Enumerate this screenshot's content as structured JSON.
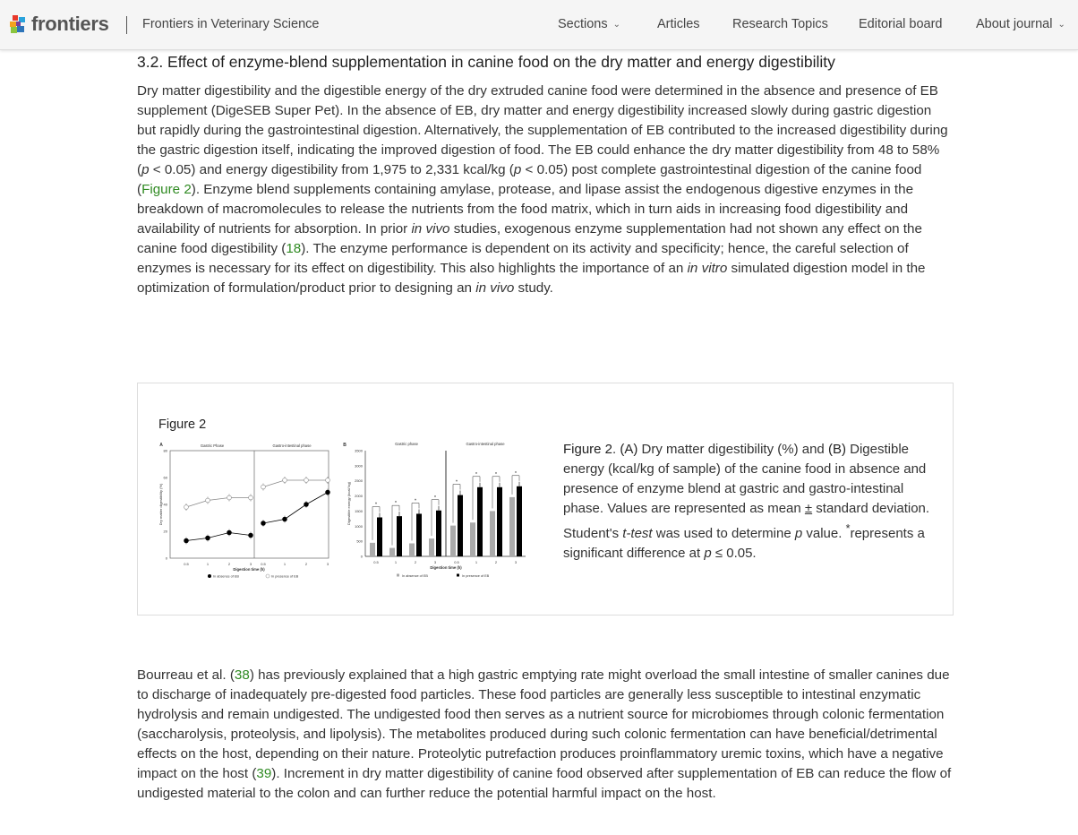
{
  "header": {
    "logo_text": "frontiers",
    "journal": "Frontiers in Veterinary Science",
    "nav": [
      {
        "label": "Sections",
        "dropdown": true
      },
      {
        "label": "Articles",
        "dropdown": false
      },
      {
        "label": "Research Topics",
        "dropdown": false
      },
      {
        "label": "Editorial board",
        "dropdown": false
      },
      {
        "label": "About journal",
        "dropdown": true
      }
    ]
  },
  "section_title": "3.2. Effect of enzyme-blend supplementation in canine food on the dry matter and energy digestibility",
  "paragraph1": [
    {
      "t": "Dry matter digestibility and the digestible energy of the dry extruded canine food were determined in the absence and presence of EB supplement (DigeSEB Super Pet). In the absence of EB, dry matter and energy digestibility increased slowly during gastric digestion but rapidly during the gastrointestinal digestion. Alternatively, the supplementation of EB contributed to the increased digestibility during the gastric digestion itself, indicating the improved digestion of food. The EB could enhance the dry matter digestibility from 48 to 58% ("
    },
    {
      "t": "p",
      "s": "i"
    },
    {
      "t": " < 0.05) and energy digestibility from 1,975 to 2,331 kcal/kg ("
    },
    {
      "t": "p",
      "s": "i"
    },
    {
      "t": " < 0.05) post complete gastrointestinal digestion of the canine food ("
    },
    {
      "t": "Figure 2",
      "s": "a"
    },
    {
      "t": "). Enzyme blend supplements containing amylase, protease, and lipase assist the endogenous digestive enzymes in the breakdown of macromolecules to release the nutrients from the food matrix, which in turn aids in increasing food digestibility and availability of nutrients for absorption. In prior "
    },
    {
      "t": "in vivo",
      "s": "i"
    },
    {
      "t": " studies, exogenous enzyme supplementation had not shown any effect on the canine food digestibility ("
    },
    {
      "t": "18",
      "s": "a"
    },
    {
      "t": "). The enzyme performance is dependent on its activity and specificity; hence, the careful selection of enzymes is necessary for its effect on digestibility. This also highlights the importance of an "
    },
    {
      "t": "in vitro",
      "s": "i"
    },
    {
      "t": " simulated digestion model in the optimization of formulation/product prior to designing an "
    },
    {
      "t": "in vivo",
      "s": "i"
    },
    {
      "t": " study."
    }
  ],
  "figure": {
    "label": "Figure 2",
    "caption": [
      {
        "t": "Figure 2",
        "s": "b"
      },
      {
        "t": ". "
      },
      {
        "t": "(A)",
        "s": "b"
      },
      {
        "t": " Dry matter digestibility (%) and "
      },
      {
        "t": "(B)",
        "s": "b"
      },
      {
        "t": " Digestible energy (kcal/kg of sample) of the canine food in absence and presence of enzyme blend at gastric and gastro-intestinal phase. Values are represented as mean "
      },
      {
        "t": "±",
        "s": "u"
      },
      {
        "t": " standard deviation. Student's "
      },
      {
        "t": "t-test",
        "s": "i"
      },
      {
        "t": " was used to determine "
      },
      {
        "t": "p",
        "s": "i"
      },
      {
        "t": " value. "
      },
      {
        "t": "*",
        "s": "sup"
      },
      {
        "t": "represents a significant difference at "
      },
      {
        "t": "p",
        "s": "i"
      },
      {
        "t": " ≤ 0.05."
      }
    ],
    "panel_a": {
      "label": "A",
      "phases": [
        "Gastric Phase",
        "Gastro-intestinal phase"
      ],
      "ylabel": "Dry matter digestibility (%)",
      "xlabel": "Digestion time (h)",
      "yticks": [
        0,
        20,
        40,
        60,
        80
      ],
      "xticks": [
        "0.5",
        "1",
        "2",
        "3"
      ],
      "legend": [
        "In absence of EB",
        "In presence of EB"
      ]
    },
    "panel_b": {
      "label": "B",
      "phases": [
        "Gastric phase",
        "Gastro-intestinal phase"
      ],
      "ylabel": "Digestible energy (kcal/ kg)",
      "xlabel": "Digestion time (h)",
      "yticks": [
        0,
        500,
        1000,
        1500,
        2000,
        2500,
        3000,
        3500
      ],
      "xticks": [
        "0.5",
        "1",
        "2",
        "3"
      ],
      "legend": [
        "In absence of EB",
        "In presence of EB"
      ]
    }
  },
  "chart_data": [
    {
      "type": "line",
      "title": "",
      "xlabel": "Digestion time (h)",
      "ylabel": "Dry matter digestibility (%)",
      "ylim": [
        0,
        80
      ],
      "categories": [
        "0.5",
        "1",
        "2",
        "3"
      ],
      "series": [
        {
          "name": "In absence of EB",
          "gastric": [
            13,
            15,
            19,
            17
          ],
          "gastro_intestinal": [
            26,
            29,
            40,
            49
          ],
          "color": "#000000"
        },
        {
          "name": "In presence of EB",
          "gastric": [
            38,
            43,
            45,
            45
          ],
          "gastro_intestinal": [
            53,
            58,
            58,
            58
          ],
          "color": "#999999"
        }
      ]
    },
    {
      "type": "bar",
      "title": "",
      "xlabel": "Digestion time (h)",
      "ylabel": "Digestible energy (kcal/ kg)",
      "ylim": [
        0,
        3500
      ],
      "categories": [
        "0.5",
        "1",
        "2",
        "3"
      ],
      "series": [
        {
          "name": "In absence of EB",
          "gastric": [
            450,
            280,
            430,
            590
          ],
          "gastro_intestinal": [
            1020,
            1120,
            1500,
            1960
          ],
          "color": "#aaaaaa"
        },
        {
          "name": "In presence of EB",
          "gastric": [
            1290,
            1330,
            1410,
            1520
          ],
          "gastro_intestinal": [
            2030,
            2290,
            2290,
            2320
          ],
          "color": "#000000"
        }
      ]
    }
  ],
  "paragraph2": [
    {
      "t": "Bourreau et al. ("
    },
    {
      "t": "38",
      "s": "a"
    },
    {
      "t": ") has previously explained that a high gastric emptying rate might overload the small intestine of smaller canines due to discharge of inadequately pre-digested food particles. These food particles are generally less susceptible to intestinal enzymatic hydrolysis and remain undigested. The undigested food then serves as a nutrient source for microbiomes through colonic fermentation (saccharolysis, proteolysis, and lipolysis). The metabolites produced during such colonic fermentation can have beneficial/detrimental effects on the host, depending on their nature. Proteolytic putrefaction produces proinflammatory uremic toxins, which have a negative impact on the host ("
    },
    {
      "t": "39",
      "s": "a"
    },
    {
      "t": "). Increment in dry matter digestibility of canine food observed after supplementation of EB can reduce the flow of undigested material to the colon and can further reduce the potential harmful impact on the host."
    }
  ],
  "colors": {
    "link": "#2f8a22",
    "header_bg": "#f5f5f5",
    "text": "#333333"
  }
}
